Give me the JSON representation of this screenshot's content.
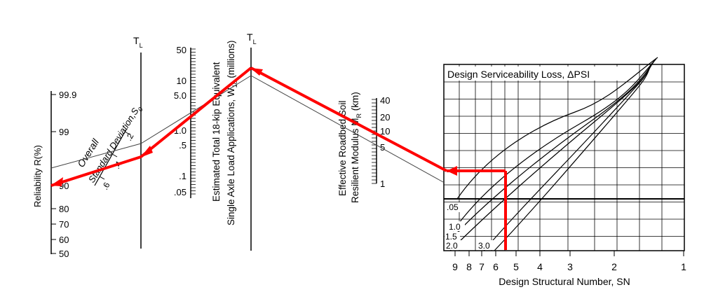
{
  "turning_line_left": {
    "label": "T",
    "subscript": "L"
  },
  "turning_line_right": {
    "label": "T",
    "subscript": "L"
  },
  "reliability": {
    "label": "Reliability R(%)",
    "ticks": [
      "99.9",
      "99",
      "90",
      "80",
      "70",
      "60",
      "50"
    ]
  },
  "std_dev": {
    "label_line1": "Overall",
    "label_line2": "Standard Deviation,S",
    "label_sub": "0",
    "ticks": [
      ".2",
      ".4",
      ".6"
    ]
  },
  "traffic": {
    "label_line1": "Estimated Total 18-kip Equivalent",
    "label_line2": "Single Axle Load Applications, W",
    "label_sub": "18",
    "label_suffix": " (millions)",
    "ticks": [
      "50",
      "10",
      "5.0",
      "1.0",
      ".5",
      ".1",
      ".05"
    ]
  },
  "modulus": {
    "label_line1": "Effective Roadbed Soil",
    "label_line2": "Resilient Modulus M",
    "label_sub": "R",
    "label_suffix": " (km)",
    "ticks": [
      "40",
      "20",
      "10",
      "5",
      "1"
    ]
  },
  "chart": {
    "title": "Design Serviceability Loss, ΔPSI",
    "psi_labels": [
      ".05",
      "1.0",
      "1.5",
      "2.0",
      "3.0"
    ],
    "x_ticks": [
      "9",
      "8",
      "7",
      "6",
      "5",
      "4",
      "3",
      "2",
      "1"
    ],
    "x_label": "Design Structural Number, SN"
  },
  "colors": {
    "path": "#ff0000",
    "ink": "#000000",
    "guide": "#444444"
  }
}
